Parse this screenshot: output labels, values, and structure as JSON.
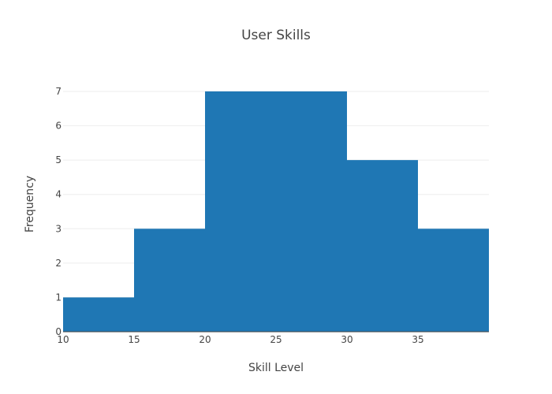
{
  "chart_data": {
    "type": "bar",
    "title": "User Skills",
    "xlabel": "Skill Level",
    "ylabel": "Frequency",
    "bins": [
      {
        "start": 10,
        "end": 15,
        "value": 1
      },
      {
        "start": 15,
        "end": 20,
        "value": 3
      },
      {
        "start": 20,
        "end": 25,
        "value": 7
      },
      {
        "start": 25,
        "end": 30,
        "value": 7
      },
      {
        "start": 30,
        "end": 35,
        "value": 5
      },
      {
        "start": 35,
        "end": 40,
        "value": 3
      }
    ],
    "x_ticks": [
      10,
      15,
      20,
      25,
      30,
      35
    ],
    "y_ticks": [
      0,
      1,
      2,
      3,
      4,
      5,
      6,
      7
    ],
    "xlim": [
      10,
      40
    ],
    "ylim": [
      0,
      7
    ],
    "grid": true,
    "bar_color": "#1f77b4",
    "grid_color": "#eeeeee"
  }
}
